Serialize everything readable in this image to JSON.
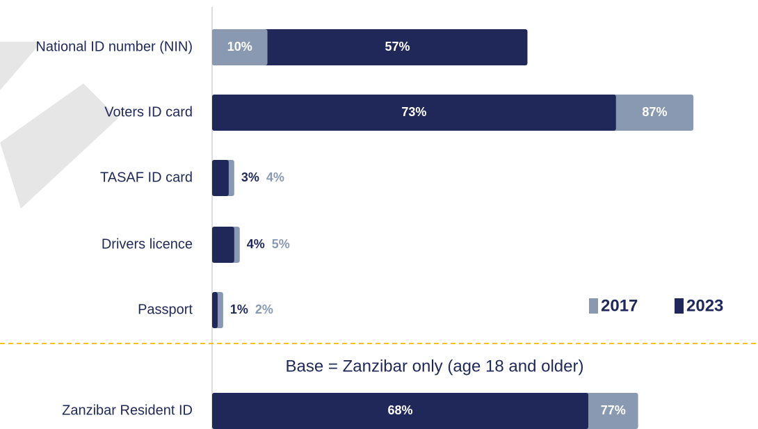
{
  "chart_data": {
    "type": "bar",
    "orientation": "horizontal",
    "categories": [
      "National ID number (NIN)",
      "Voters ID card",
      "TASAF ID card",
      "Drivers licence",
      "Passport",
      "Zanzibar Resident ID"
    ],
    "series": [
      {
        "name": "2017",
        "color": "#8a99b2",
        "values": [
          10,
          87,
          4,
          5,
          2,
          77
        ],
        "value_labels": [
          "10%",
          "87%",
          "4%",
          "5%",
          "2%",
          "77%"
        ]
      },
      {
        "name": "2023",
        "color": "#1f2858",
        "values": [
          57,
          73,
          3,
          4,
          1,
          68
        ],
        "value_labels": [
          "57%",
          "73%",
          "3%",
          "4%",
          "1%",
          "68%"
        ]
      }
    ],
    "annotation": "Base = Zanzibar only (age 18 and older)",
    "xlim": [
      0,
      90
    ],
    "legend": "lower right"
  }
}
